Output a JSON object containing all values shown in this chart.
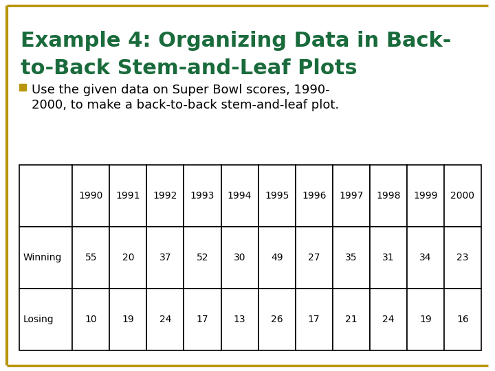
{
  "title_line1": "Example 4: Organizing Data in Back-",
  "title_line2": "to-Back Stem-and-Leaf Plots",
  "title_color": "#1a6b3c",
  "bullet_line1": "Use the given data on Super Bowl scores, 1990-",
  "bullet_line2": "2000, to make a back-to-back stem-and-leaf plot.",
  "bullet_color": "#b8960c",
  "background_color": "#ffffff",
  "border_color": "#b8960c",
  "table_headers": [
    "",
    "1990",
    "1991",
    "1992",
    "1993",
    "1994",
    "1995",
    "1996",
    "1997",
    "1998",
    "1999",
    "2000"
  ],
  "table_row1_label": "Winning",
  "table_row2_label": "Losing",
  "winning": [
    55,
    20,
    37,
    52,
    30,
    49,
    27,
    35,
    31,
    34,
    23
  ],
  "losing": [
    10,
    19,
    24,
    17,
    13,
    26,
    17,
    21,
    24,
    19,
    16
  ],
  "title_fontsize": 22,
  "bullet_fontsize": 13,
  "table_fontsize": 10
}
